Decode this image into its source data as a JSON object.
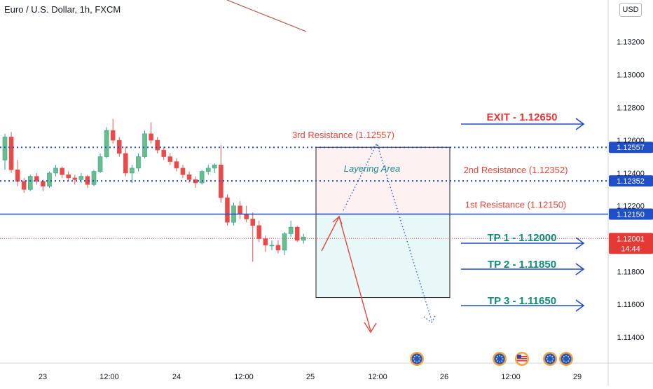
{
  "header": {
    "symbol_title": "Euro / U.S. Dollar, 1h, FXCM",
    "currency": "USD"
  },
  "colors": {
    "up": "#26a69a",
    "down": "#ef5350",
    "up_fill": "#6bbd8a",
    "down_fill": "#e84a4a",
    "level_line": "#1e4fc8",
    "resistance_text": "#e8463a",
    "exit_text": "#e53935",
    "tp_text": "#0f8c7a",
    "current_price": "#e53935",
    "layering_text": "#1e8c8c",
    "zone_upper": "#fdf1f1",
    "zone_lower": "#e8f7f8",
    "scenario_red": "#e8463a",
    "scenario_blue": "#2f5fd0",
    "axis_text": "#131722",
    "event_icon": "#1f56c7"
  },
  "chart_data": {
    "type": "candlestick",
    "instrument": "Euro / U.S. Dollar",
    "timeframe": "1h",
    "source": "FXCM",
    "ylim": [
      1.1131,
      1.1331
    ],
    "y_ticks": [
      1.132,
      1.13,
      1.128,
      1.126,
      1.124,
      1.122,
      1.12,
      1.118,
      1.116,
      1.114
    ],
    "y_tick_labels": [
      "1.13200",
      "1.13000",
      "1.12800",
      "1.12600",
      "1.12400",
      "1.12200",
      "",
      "1.11800",
      "1.11600",
      "1.11400"
    ],
    "x_tick_labels": [
      "23",
      "12:00",
      "24",
      "12:00",
      "25",
      "12:00",
      "26",
      "12:00",
      "29"
    ],
    "grid": false,
    "candles": [
      [
        1.1248,
        1.1264,
        1.1242,
        1.1262
      ],
      [
        1.1262,
        1.1265,
        1.124,
        1.1242
      ],
      [
        1.1242,
        1.1248,
        1.1232,
        1.1235
      ],
      [
        1.1235,
        1.1237,
        1.1228,
        1.123
      ],
      [
        1.123,
        1.1239,
        1.1229,
        1.1238
      ],
      [
        1.1238,
        1.124,
        1.1233,
        1.1235
      ],
      [
        1.1235,
        1.1236,
        1.1229,
        1.1232
      ],
      [
        1.1232,
        1.1241,
        1.1231,
        1.124
      ],
      [
        1.124,
        1.1245,
        1.1238,
        1.1243
      ],
      [
        1.1243,
        1.1244,
        1.1237,
        1.1239
      ],
      [
        1.1239,
        1.1241,
        1.1235,
        1.1237
      ],
      [
        1.1237,
        1.1239,
        1.1233,
        1.1236
      ],
      [
        1.1236,
        1.124,
        1.1234,
        1.1238
      ],
      [
        1.1238,
        1.1239,
        1.1231,
        1.1233
      ],
      [
        1.1233,
        1.1242,
        1.1232,
        1.1241
      ],
      [
        1.1241,
        1.1252,
        1.124,
        1.125
      ],
      [
        1.125,
        1.1268,
        1.1249,
        1.1266
      ],
      [
        1.1266,
        1.1273,
        1.1258,
        1.126
      ],
      [
        1.126,
        1.1262,
        1.125,
        1.1252
      ],
      [
        1.1252,
        1.1256,
        1.1238,
        1.124
      ],
      [
        1.124,
        1.1245,
        1.1234,
        1.1243
      ],
      [
        1.1243,
        1.1252,
        1.1241,
        1.125
      ],
      [
        1.125,
        1.1266,
        1.1249,
        1.1264
      ],
      [
        1.1264,
        1.1271,
        1.1258,
        1.126
      ],
      [
        1.126,
        1.1262,
        1.1252,
        1.1254
      ],
      [
        1.1254,
        1.1256,
        1.1248,
        1.125
      ],
      [
        1.125,
        1.1252,
        1.1245,
        1.1247
      ],
      [
        1.1247,
        1.1249,
        1.1241,
        1.1243
      ],
      [
        1.1243,
        1.1245,
        1.1237,
        1.1239
      ],
      [
        1.1239,
        1.1241,
        1.1234,
        1.1236
      ],
      [
        1.1236,
        1.1238,
        1.1231,
        1.1234
      ],
      [
        1.1234,
        1.1242,
        1.1233,
        1.1241
      ],
      [
        1.1241,
        1.1245,
        1.1239,
        1.1243
      ],
      [
        1.1243,
        1.1246,
        1.124,
        1.1245
      ],
      [
        1.1245,
        1.1257,
        1.1222,
        1.1225
      ],
      [
        1.1225,
        1.1227,
        1.1208,
        1.121
      ],
      [
        1.121,
        1.1222,
        1.1208,
        1.122
      ],
      [
        1.122,
        1.1223,
        1.1212,
        1.1215
      ],
      [
        1.1215,
        1.122,
        1.121,
        1.1212
      ],
      [
        1.1212,
        1.1216,
        1.1186,
        1.1208
      ],
      [
        1.1208,
        1.1211,
        1.1198,
        1.12
      ],
      [
        1.12,
        1.1202,
        1.1192,
        1.1196
      ],
      [
        1.1196,
        1.1199,
        1.1193,
        1.1196
      ],
      [
        1.1196,
        1.1199,
        1.1191,
        1.1193
      ],
      [
        1.1193,
        1.1204,
        1.119,
        1.1203
      ],
      [
        1.1203,
        1.1211,
        1.1201,
        1.1207
      ],
      [
        1.1207,
        1.1208,
        1.1198,
        1.1199
      ],
      [
        1.1199,
        1.1203,
        1.1197,
        1.1201
      ]
    ],
    "levels": [
      {
        "name": "3rd Resistance",
        "value": 1.12557,
        "label": "3rd Resistance (1.12557)",
        "axis_label": "1.12557",
        "style": "dotted"
      },
      {
        "name": "2nd Resistance",
        "value": 1.12352,
        "label": "2nd Resistance (1.12352)",
        "axis_label": "1.12352",
        "style": "dotted"
      },
      {
        "name": "1st Resistance",
        "value": 1.1215,
        "label": "1st Resistance (1.12150)",
        "axis_label": "1.12150",
        "style": "solid"
      }
    ],
    "current_price": {
      "value": 1.12001,
      "label": "1.12001",
      "countdown": "14:44"
    },
    "targets": [
      {
        "label": "EXIT - 1.12650",
        "value": 1.1265
      },
      {
        "label": "TP 1 - 1.12000",
        "value": 1.12
      },
      {
        "label": "TP 2 - 1.11850",
        "value": 1.1185
      },
      {
        "label": "TP 3 - 1.11650",
        "value": 1.1165
      }
    ],
    "zone_annotation": "Layering Area",
    "event_icons": [
      "calendar",
      "calendar",
      "us-flag",
      "calendar",
      "calendar"
    ]
  }
}
